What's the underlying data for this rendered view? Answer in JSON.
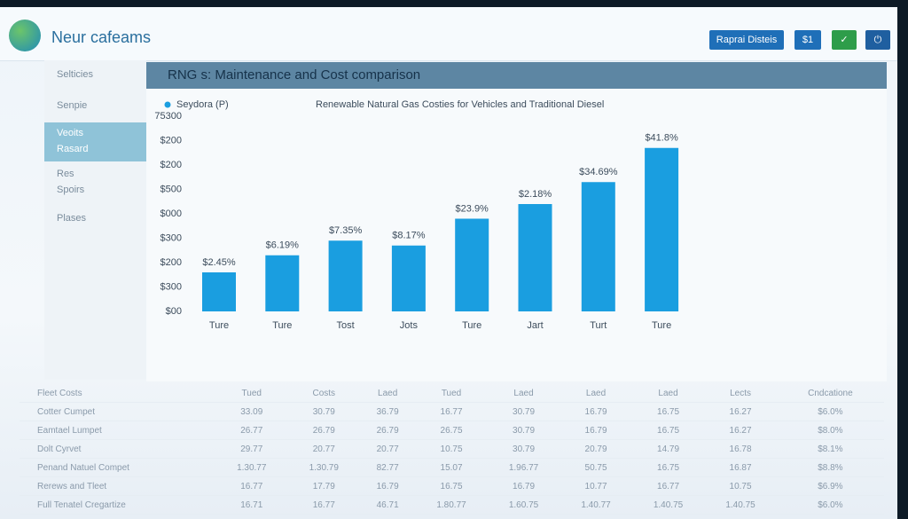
{
  "header": {
    "app_name": "Neur cafeams",
    "buttons": [
      "Raprai Disteis",
      "$1"
    ]
  },
  "sidebar": {
    "items": [
      "Selticies",
      "Senpie",
      "Veoits",
      "Rasard",
      "Res",
      "Spoirs",
      "Plases"
    ]
  },
  "panel_title": "RNG s: Maintenance and Cost comparison",
  "chart_data": {
    "type": "bar",
    "subtitle": "Renewable Natural Gas Costies for Vehicles and Traditional Diesel",
    "series": [
      {
        "name": "Seydora (P)",
        "color": "#1a9ee0",
        "values": [
          1.6,
          2.3,
          2.9,
          2.7,
          3.8,
          4.4,
          5.3,
          6.7
        ]
      }
    ],
    "bar_labels": [
      "$2.45%",
      "$6.19%",
      "$7.35%",
      "$8.17%",
      "$23.9%",
      "$2.18%",
      "$34.69%",
      "$41.8%"
    ],
    "categories": [
      "Ture",
      "Ture",
      "Tost",
      "Jots",
      "Ture",
      "Jart",
      "Turt",
      "Ture"
    ],
    "ylim": [
      0,
      8
    ],
    "yticks": [
      {
        "value": 0,
        "label": "$00"
      },
      {
        "value": 1,
        "label": "$300"
      },
      {
        "value": 2,
        "label": "$200"
      },
      {
        "value": 3,
        "label": "$300"
      },
      {
        "value": 4,
        "label": "$000"
      },
      {
        "value": 5,
        "label": "$500"
      },
      {
        "value": 6,
        "label": "$200"
      },
      {
        "value": 7,
        "label": "$200"
      },
      {
        "value": 8,
        "label": "75300"
      }
    ]
  },
  "table": {
    "title": "Fleet Costs",
    "columns": [
      "Tued",
      "Costs",
      "Laed",
      "Tued",
      "Laed",
      "Laed",
      "Laed",
      "Lects",
      "Cndcatione"
    ],
    "rows": [
      [
        "Cotter Cumpet",
        "33.09",
        "30.79",
        "36.79",
        "16.77",
        "30.79",
        "16.79",
        "16.75",
        "16.27",
        "$6.0%"
      ],
      [
        "Eamtael Lumpet",
        "26.77",
        "26.79",
        "26.79",
        "26.75",
        "30.79",
        "16.79",
        "16.75",
        "16.27",
        "$8.0%"
      ],
      [
        "Dolt Cyrvet",
        "29.77",
        "20.77",
        "20.77",
        "10.75",
        "30.79",
        "20.79",
        "14.79",
        "16.78",
        "$8.1%"
      ],
      [
        "Penand Natuel Compet",
        "1.30.77",
        "1.30.79",
        "82.77",
        "15.07",
        "1.96.77",
        "50.75",
        "16.75",
        "16.87",
        "$8.8%"
      ],
      [
        "Rerews and Tleet",
        "16.77",
        "17.79",
        "16.79",
        "16.75",
        "16.79",
        "10.77",
        "16.77",
        "10.75",
        "$6.9%"
      ],
      [
        "Full Tenatel Cregartize",
        "16.71",
        "16.77",
        "46.71",
        "1.80.77",
        "1.60.75",
        "1.40.77",
        "1.40.75",
        "1.40.75",
        "$6.0%"
      ]
    ]
  }
}
